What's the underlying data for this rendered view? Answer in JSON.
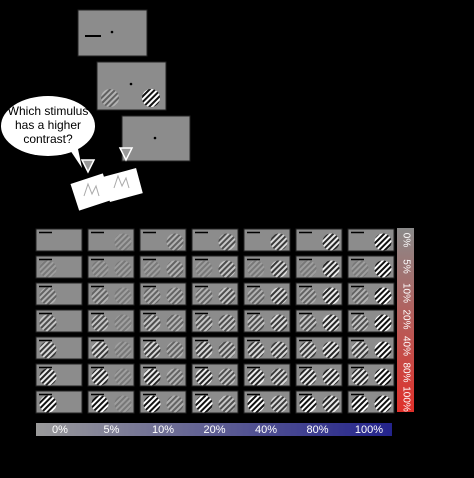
{
  "speech_bubble": {
    "lines": [
      "Which stimulus",
      "has a higher",
      "contrast?"
    ]
  },
  "contrast_bar_right": {
    "labels": [
      "0%",
      "5%",
      "10%",
      "20%",
      "40%",
      "80%",
      "100%"
    ]
  },
  "contrast_bar_bottom": {
    "labels": [
      "0%",
      "5%",
      "10%",
      "20%",
      "40%",
      "80%",
      "100%"
    ]
  }
}
